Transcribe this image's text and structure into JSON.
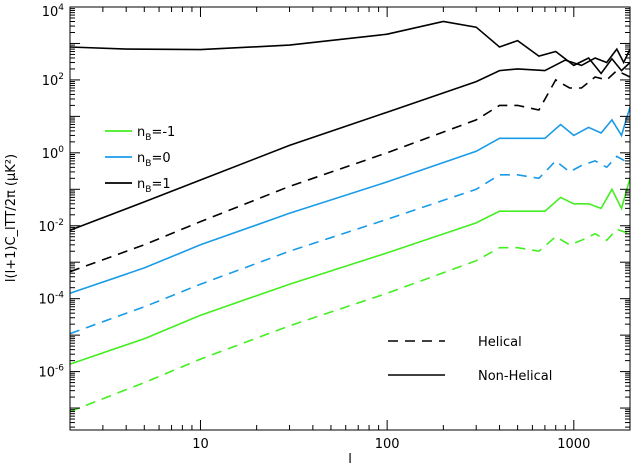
{
  "chart_data": {
    "type": "line",
    "xscale": "log",
    "yscale": "log",
    "xlim": [
      2,
      2000
    ],
    "ylim": [
      2.5e-08,
      10000.0
    ],
    "xlabel": "l",
    "ylabel": "l(l+1)C_lTT/2π (μK²)",
    "x_tick_labels": [
      {
        "value": 10,
        "label": "10"
      },
      {
        "value": 100,
        "label": "100"
      },
      {
        "value": 1000,
        "label": "1000"
      }
    ],
    "y_tick_labels": [
      {
        "value": 1e-06,
        "base": "10",
        "exp": "-6"
      },
      {
        "value": 0.0001,
        "base": "10",
        "exp": "-4"
      },
      {
        "value": 0.01,
        "base": "10",
        "exp": "-2"
      },
      {
        "value": 1,
        "base": "10",
        "exp": "0"
      },
      {
        "value": 100.0,
        "base": "10",
        "exp": "2"
      },
      {
        "value": 10000.0,
        "base": "10",
        "exp": "4"
      }
    ],
    "legend_color": [
      {
        "label": "n_B=-1",
        "main": "n",
        "sub": "B",
        "rest": "=-1",
        "color": "#44ee22"
      },
      {
        "label": "n_B=0",
        "main": "n",
        "sub": "B",
        "rest": "=0",
        "color": "#1a9be8"
      },
      {
        "label": "n_B=1",
        "main": "n",
        "sub": "B",
        "rest": "=1",
        "color": "#000000"
      }
    ],
    "legend_style": [
      {
        "label": "Helical",
        "dash": true
      },
      {
        "label": "Non-Helical",
        "dash": false
      }
    ],
    "series": [
      {
        "color": "#000000",
        "dash": false,
        "points": [
          [
            2,
            800
          ],
          [
            4,
            700
          ],
          [
            10,
            680
          ],
          [
            30,
            900
          ],
          [
            100,
            1800
          ],
          [
            200,
            4000
          ],
          [
            300,
            2800
          ],
          [
            400,
            800
          ],
          [
            500,
            1200
          ],
          [
            650,
            450
          ],
          [
            800,
            600
          ],
          [
            1000,
            250
          ],
          [
            1200,
            400
          ],
          [
            1400,
            150
          ],
          [
            1600,
            380
          ],
          [
            1800,
            180
          ],
          [
            2000,
            300
          ]
        ]
      },
      {
        "color": "#000000",
        "dash": false,
        "points": [
          [
            2,
            0.0075
          ],
          [
            5,
            0.045
          ],
          [
            10,
            0.18
          ],
          [
            30,
            1.6
          ],
          [
            100,
            13
          ],
          [
            300,
            90
          ],
          [
            400,
            180
          ],
          [
            500,
            200
          ],
          [
            700,
            180
          ],
          [
            900,
            350
          ],
          [
            1100,
            250
          ],
          [
            1300,
            400
          ],
          [
            1500,
            300
          ],
          [
            1700,
            700
          ],
          [
            1850,
            300
          ],
          [
            2000,
            700
          ]
        ]
      },
      {
        "color": "#000000",
        "dash": true,
        "points": [
          [
            2,
            0.00055
          ],
          [
            5,
            0.003
          ],
          [
            10,
            0.013
          ],
          [
            30,
            0.12
          ],
          [
            100,
            1.0
          ],
          [
            300,
            8
          ],
          [
            400,
            20
          ],
          [
            500,
            20
          ],
          [
            650,
            15
          ],
          [
            800,
            100
          ],
          [
            950,
            60
          ],
          [
            1100,
            60
          ],
          [
            1300,
            120
          ],
          [
            1500,
            100
          ],
          [
            1700,
            180
          ],
          [
            2000,
            120
          ]
        ]
      },
      {
        "color": "#1a9be8",
        "dash": false,
        "points": [
          [
            2,
            0.00014
          ],
          [
            5,
            0.0007
          ],
          [
            10,
            0.003
          ],
          [
            30,
            0.022
          ],
          [
            100,
            0.16
          ],
          [
            300,
            1.1
          ],
          [
            400,
            2.5
          ],
          [
            500,
            2.5
          ],
          [
            700,
            2.5
          ],
          [
            850,
            6
          ],
          [
            1000,
            3
          ],
          [
            1200,
            5
          ],
          [
            1400,
            3.5
          ],
          [
            1600,
            8
          ],
          [
            1800,
            3
          ],
          [
            2000,
            18
          ]
        ]
      },
      {
        "color": "#1a9be8",
        "dash": true,
        "points": [
          [
            2,
            1.1e-05
          ],
          [
            5,
            6e-05
          ],
          [
            10,
            0.00025
          ],
          [
            30,
            0.002
          ],
          [
            100,
            0.015
          ],
          [
            300,
            0.1
          ],
          [
            400,
            0.25
          ],
          [
            500,
            0.25
          ],
          [
            650,
            0.2
          ],
          [
            800,
            0.6
          ],
          [
            950,
            0.3
          ],
          [
            1100,
            0.45
          ],
          [
            1300,
            0.6
          ],
          [
            1500,
            0.4
          ],
          [
            1700,
            0.8
          ],
          [
            2000,
            0.5
          ]
        ]
      },
      {
        "color": "#44ee22",
        "dash": false,
        "points": [
          [
            2,
            1.6e-06
          ],
          [
            5,
            8e-06
          ],
          [
            10,
            3.5e-05
          ],
          [
            30,
            0.00025
          ],
          [
            100,
            0.0018
          ],
          [
            300,
            0.012
          ],
          [
            400,
            0.025
          ],
          [
            500,
            0.025
          ],
          [
            700,
            0.025
          ],
          [
            850,
            0.06
          ],
          [
            1000,
            0.04
          ],
          [
            1200,
            0.04
          ],
          [
            1400,
            0.03
          ],
          [
            1600,
            0.1
          ],
          [
            1800,
            0.03
          ],
          [
            2000,
            0.2
          ]
        ]
      },
      {
        "color": "#44ee22",
        "dash": true,
        "points": [
          [
            2,
            8e-08
          ],
          [
            5,
            5e-07
          ],
          [
            10,
            2.2e-06
          ],
          [
            30,
            1.8e-05
          ],
          [
            100,
            0.00014
          ],
          [
            300,
            0.0011
          ],
          [
            400,
            0.0025
          ],
          [
            500,
            0.0025
          ],
          [
            650,
            0.002
          ],
          [
            800,
            0.005
          ],
          [
            950,
            0.003
          ],
          [
            1100,
            0.004
          ],
          [
            1300,
            0.006
          ],
          [
            1500,
            0.004
          ],
          [
            1700,
            0.008
          ],
          [
            2000,
            0.006
          ]
        ]
      }
    ]
  }
}
